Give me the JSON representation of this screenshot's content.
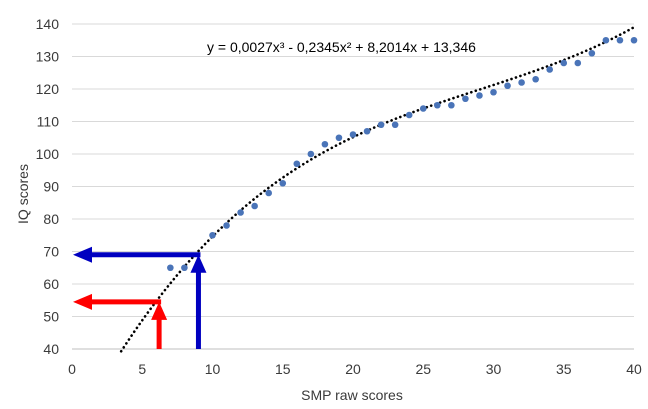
{
  "chart_data": {
    "type": "scatter",
    "xlabel": "SMP raw scores",
    "ylabel": "IQ scores",
    "xlim": [
      0,
      40
    ],
    "ylim": [
      40,
      140
    ],
    "x_ticks": [
      "0",
      "5",
      "10",
      "15",
      "20",
      "25",
      "30",
      "35",
      "40"
    ],
    "y_ticks": [
      "40",
      "50",
      "60",
      "70",
      "80",
      "90",
      "100",
      "110",
      "120",
      "130",
      "140"
    ],
    "grid": "horizontal",
    "points": {
      "color": "#4a74b8",
      "x": [
        7,
        8,
        10,
        11,
        12,
        13,
        14,
        15,
        16,
        17,
        18,
        19,
        20,
        21,
        22,
        23,
        24,
        25,
        26,
        27,
        28,
        29,
        30,
        31,
        32,
        33,
        34,
        35,
        36,
        37,
        38,
        39,
        40
      ],
      "y": [
        65,
        65,
        75,
        78,
        82,
        84,
        88,
        91,
        97,
        100,
        103,
        105,
        106,
        107,
        109,
        109,
        112,
        114,
        115,
        115,
        117,
        118,
        119,
        121,
        122,
        123,
        126,
        128,
        128,
        131,
        135,
        135,
        135
      ]
    },
    "trendline": {
      "style": "dotted",
      "color": "#000000",
      "equation": "y = 0,0027x³ - 0,2345x² + 8,2014x + 13,346",
      "coefficients": [
        0.0027,
        -0.2345,
        8.2014,
        13.346
      ],
      "x_range": [
        3.5,
        40
      ]
    },
    "annotations": [
      {
        "type": "arrow-pair",
        "color": "#0000c0",
        "x": 9,
        "y": 69
      },
      {
        "type": "arrow-pair",
        "color": "#ff0000",
        "x": 6.2,
        "y": 54.5
      }
    ]
  }
}
